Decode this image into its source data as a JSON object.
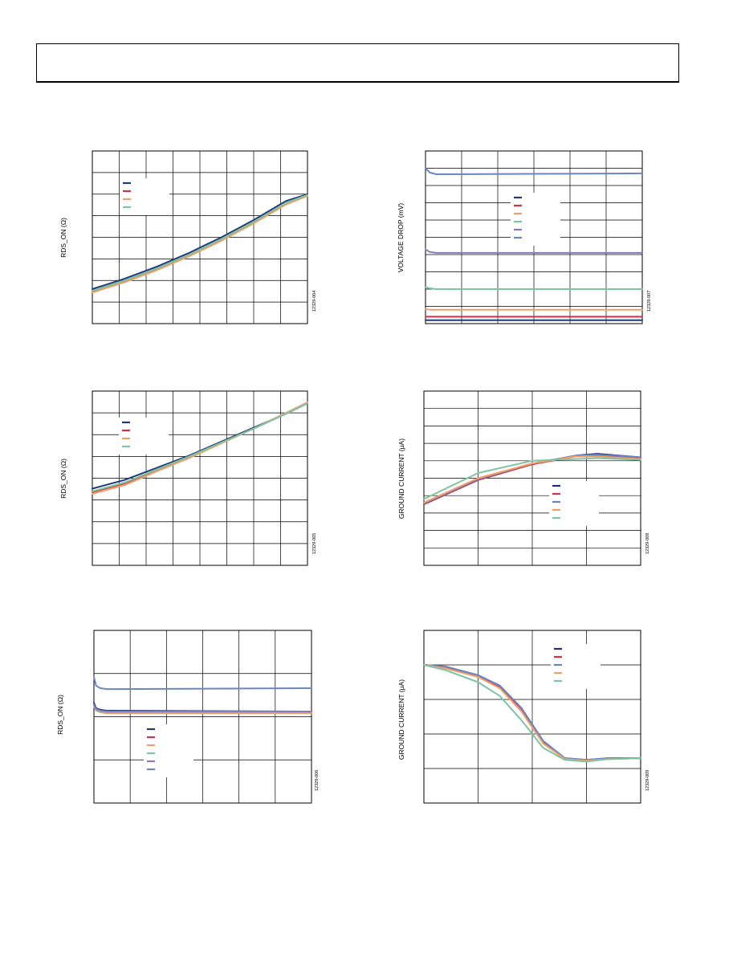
{
  "header": {
    "text": ""
  },
  "chart_data": [
    {
      "id": "09-004",
      "type": "line",
      "title": "",
      "ylabel": "RDS_ON (Ω)",
      "fig_id": "12329-004",
      "series": [
        {
          "color": "#1f3b7a",
          "x": [
            0,
            0.15,
            0.3,
            0.45,
            0.6,
            0.75,
            0.9,
            1
          ],
          "y": [
            0.2,
            0.26,
            0.33,
            0.41,
            0.5,
            0.6,
            0.71,
            0.75
          ]
        },
        {
          "color": "#d1324a",
          "x": [
            0,
            0.15,
            0.3,
            0.45,
            0.6,
            0.75,
            0.9,
            1
          ],
          "y": [
            0.185,
            0.245,
            0.315,
            0.395,
            0.485,
            0.585,
            0.695,
            0.745
          ]
        },
        {
          "color": "#f0a067",
          "x": [
            0,
            0.15,
            0.3,
            0.45,
            0.6,
            0.75,
            0.9,
            1
          ],
          "y": [
            0.18,
            0.24,
            0.31,
            0.39,
            0.48,
            0.58,
            0.69,
            0.74
          ]
        },
        {
          "color": "#7fc3a5",
          "x": [
            0,
            0.15,
            0.3,
            0.45,
            0.6,
            0.75,
            0.9,
            1
          ],
          "y": [
            0.19,
            0.25,
            0.32,
            0.4,
            0.49,
            0.59,
            0.7,
            0.745
          ]
        }
      ]
    },
    {
      "id": "09-005",
      "type": "line",
      "title": "",
      "ylabel": "RDS_ON (Ω)",
      "fig_id": "12329-005",
      "series": [
        {
          "color": "#1f3b7a",
          "x": [
            0,
            0.15,
            0.3,
            0.45,
            0.6,
            0.75,
            0.9,
            1
          ],
          "y": [
            0.44,
            0.49,
            0.56,
            0.63,
            0.71,
            0.79,
            0.87,
            0.93
          ]
        },
        {
          "color": "#d1324a",
          "x": [
            0,
            0.15,
            0.3,
            0.45,
            0.6,
            0.75,
            0.9,
            1
          ],
          "y": [
            0.42,
            0.47,
            0.545,
            0.62,
            0.705,
            0.785,
            0.87,
            0.93
          ]
        },
        {
          "color": "#f0a067",
          "x": [
            0,
            0.15,
            0.3,
            0.45,
            0.6,
            0.75,
            0.9,
            1
          ],
          "y": [
            0.41,
            0.46,
            0.54,
            0.615,
            0.7,
            0.785,
            0.875,
            0.935
          ]
        },
        {
          "color": "#7fc3a5",
          "x": [
            0,
            0.15,
            0.3,
            0.45,
            0.6,
            0.75,
            0.9,
            1
          ],
          "y": [
            0.425,
            0.475,
            0.55,
            0.625,
            0.705,
            0.785,
            0.87,
            0.93
          ]
        }
      ]
    },
    {
      "id": "09-006",
      "type": "line",
      "title": "",
      "ylabel": "RDS_ON (Ω)",
      "fig_id": "12329-006",
      "series": [
        {
          "color": "#1f3b7a",
          "x": [
            0,
            0.01,
            0.03,
            0.06,
            0.1,
            1
          ],
          "y": [
            0.58,
            0.55,
            0.54,
            0.535,
            0.535,
            0.53
          ]
        },
        {
          "color": "#d1324a",
          "x": [
            0,
            0.01,
            0.03,
            0.06,
            0.1,
            1
          ],
          "y": [
            0.57,
            0.54,
            0.53,
            0.525,
            0.525,
            0.525
          ]
        },
        {
          "color": "#f0a067",
          "x": [
            0,
            0.01,
            0.03,
            0.06,
            0.1,
            1
          ],
          "y": [
            0.56,
            0.535,
            0.525,
            0.52,
            0.52,
            0.52
          ]
        },
        {
          "color": "#7fc3a5",
          "x": [
            0,
            0.01,
            0.03,
            0.06,
            0.1,
            1
          ],
          "y": [
            0.565,
            0.54,
            0.53,
            0.525,
            0.525,
            0.525
          ]
        },
        {
          "color": "#8a7ab8",
          "x": [
            0,
            0.01,
            0.03,
            0.06,
            0.1,
            1
          ],
          "y": [
            0.57,
            0.545,
            0.535,
            0.53,
            0.53,
            0.53
          ]
        },
        {
          "color": "#6a86c2",
          "x": [
            0,
            0.01,
            0.03,
            0.06,
            0.1,
            1
          ],
          "y": [
            0.73,
            0.68,
            0.665,
            0.66,
            0.66,
            0.665
          ]
        }
      ]
    },
    {
      "id": "09-007",
      "type": "line",
      "title": "",
      "ylabel": "VOLTAGE DROP (mV)",
      "fig_id": "12329-007",
      "series": [
        {
          "color": "#1f3b7a",
          "x": [
            0,
            1
          ],
          "y": [
            0.02,
            0.02
          ]
        },
        {
          "color": "#d1324a",
          "x": [
            0,
            1
          ],
          "y": [
            0.04,
            0.04
          ]
        },
        {
          "color": "#f0a067",
          "x": [
            0,
            0.02,
            1
          ],
          "y": [
            0.085,
            0.08,
            0.08
          ]
        },
        {
          "color": "#7fc3a5",
          "x": [
            0,
            0.02,
            0.05,
            1
          ],
          "y": [
            0.21,
            0.205,
            0.2,
            0.2
          ]
        },
        {
          "color": "#8a7ab8",
          "x": [
            0,
            0.02,
            0.05,
            1
          ],
          "y": [
            0.43,
            0.415,
            0.41,
            0.41
          ]
        },
        {
          "color": "#6a86c2",
          "x": [
            0,
            0.02,
            0.05,
            0.1,
            1
          ],
          "y": [
            0.9,
            0.875,
            0.865,
            0.865,
            0.87
          ]
        }
      ]
    },
    {
      "id": "09-008",
      "type": "line",
      "title": "",
      "ylabel": "GROUND CURRENT (μA)",
      "fig_id": "12329-008",
      "series": [
        {
          "color": "#2a2a7a",
          "x": [
            0,
            0.25,
            0.5,
            0.7,
            0.8,
            1
          ],
          "y": [
            0.35,
            0.49,
            0.58,
            0.63,
            0.64,
            0.62
          ]
        },
        {
          "color": "#d1324a",
          "x": [
            0,
            0.25,
            0.5,
            0.7,
            0.8,
            1
          ],
          "y": [
            0.35,
            0.49,
            0.58,
            0.625,
            0.63,
            0.615
          ]
        },
        {
          "color": "#6a86c2",
          "x": [
            0,
            0.25,
            0.5,
            0.7,
            0.8,
            1
          ],
          "y": [
            0.355,
            0.495,
            0.585,
            0.63,
            0.635,
            0.62
          ]
        },
        {
          "color": "#f0a067",
          "x": [
            0,
            0.25,
            0.5,
            0.7,
            0.8,
            1
          ],
          "y": [
            0.36,
            0.5,
            0.585,
            0.625,
            0.625,
            0.61
          ]
        },
        {
          "color": "#7fc3a5",
          "x": [
            0,
            0.25,
            0.5,
            0.7,
            0.8,
            1
          ],
          "y": [
            0.38,
            0.53,
            0.6,
            0.61,
            0.615,
            0.605
          ]
        }
      ]
    },
    {
      "id": "09-009",
      "type": "line",
      "title": "",
      "ylabel": "GROUND CURRENT (μA)",
      "fig_id": "12329-009",
      "series": [
        {
          "color": "#2a2a7a",
          "x": [
            0,
            0.1,
            0.25,
            0.35,
            0.45,
            0.55,
            0.65,
            0.75,
            0.85,
            1
          ],
          "y": [
            0.8,
            0.79,
            0.74,
            0.68,
            0.55,
            0.36,
            0.26,
            0.25,
            0.26,
            0.26
          ]
        },
        {
          "color": "#d1324a",
          "x": [
            0,
            0.1,
            0.25,
            0.35,
            0.45,
            0.55,
            0.65,
            0.75,
            0.85,
            1
          ],
          "y": [
            0.8,
            0.785,
            0.735,
            0.675,
            0.545,
            0.355,
            0.255,
            0.245,
            0.255,
            0.26
          ]
        },
        {
          "color": "#6a86c2",
          "x": [
            0,
            0.1,
            0.25,
            0.35,
            0.45,
            0.55,
            0.65,
            0.75,
            0.85,
            1
          ],
          "y": [
            0.8,
            0.79,
            0.74,
            0.68,
            0.55,
            0.36,
            0.26,
            0.25,
            0.26,
            0.26
          ]
        },
        {
          "color": "#f0a067",
          "x": [
            0,
            0.1,
            0.25,
            0.35,
            0.45,
            0.55,
            0.65,
            0.75,
            0.85,
            1
          ],
          "y": [
            0.8,
            0.78,
            0.73,
            0.665,
            0.53,
            0.345,
            0.255,
            0.245,
            0.255,
            0.26
          ]
        },
        {
          "color": "#7fc3a5",
          "x": [
            0,
            0.1,
            0.25,
            0.35,
            0.45,
            0.55,
            0.65,
            0.75,
            0.85,
            1
          ],
          "y": [
            0.8,
            0.77,
            0.7,
            0.62,
            0.48,
            0.32,
            0.25,
            0.24,
            0.255,
            0.26
          ]
        }
      ]
    }
  ]
}
